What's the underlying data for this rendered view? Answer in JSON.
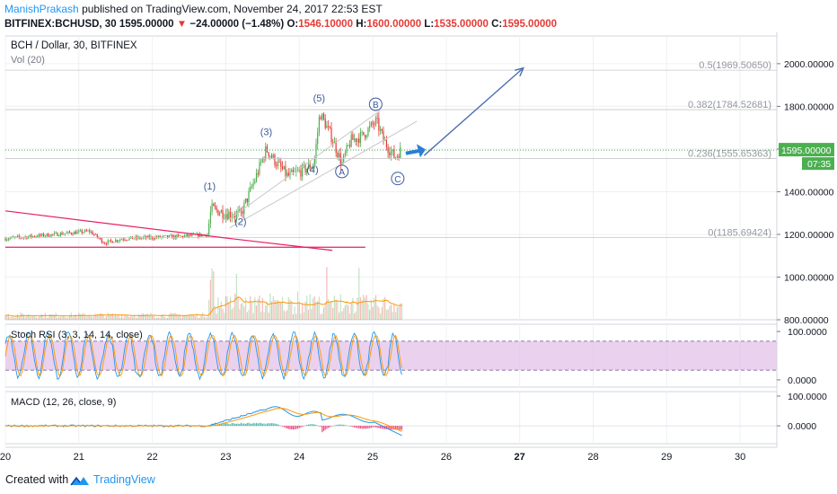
{
  "header": {
    "author": "ManishPrakash",
    "published_text": "published on TradingView.com, November 24, 2017 22:53 EST",
    "symbol_line": "BITFINEX:BCHUSD, 30",
    "last_price": "1595.00000",
    "change_arrow": "▼",
    "change_text": "−24.00000 (−1.48%)",
    "o_label": "O:",
    "o_value": "1546.10000",
    "h_label": "H:",
    "h_value": "1600.00000",
    "l_label": "L:",
    "l_value": "1535.00000",
    "c_label": "C:",
    "c_value": "1595.00000"
  },
  "footer": {
    "created_with": "Created with",
    "brand": "TradingView",
    "logo_icon": "tradingview-logo-icon"
  },
  "colors": {
    "up": "#4caf50",
    "down": "#e53935",
    "wedge": "#e91e63",
    "arrow": "#4a6fb3",
    "rsi_band": "#e1bee7",
    "macd_line": "#2196f3",
    "signal_line": "#ff9800",
    "last_price_bg": "#4caf50",
    "grid": "#eef0f3"
  },
  "chart_data": [
    {
      "type": "candlestick",
      "title": "BCH / Dollar, 30, BITFINEX",
      "y_ticks": [
        800,
        1000,
        1200,
        1400,
        1600,
        1800,
        2000
      ],
      "y_tick_labels": [
        "800.00000",
        "1000.00000",
        "1200.00000",
        "1400.00000",
        "1600.00000",
        "1800.00000",
        "2000.00000"
      ],
      "ylim": [
        800,
        2130
      ],
      "x_range": [
        20,
        30.5
      ],
      "x_ticks": [
        20,
        21,
        22,
        23,
        24,
        25,
        26,
        27,
        28,
        29,
        30
      ],
      "x_tick_labels": [
        "20",
        "21",
        "22",
        "23",
        "24",
        "25",
        "26",
        "27",
        "28",
        "29",
        "30"
      ],
      "bold_x_ticks": [
        27
      ],
      "last_price_label": "1595.00000",
      "countdown_label": "07:35",
      "fib_levels": [
        {
          "label": "0.5(1969.50650)",
          "price": 1969.5065
        },
        {
          "label": "0.382(1784.52681)",
          "price": 1784.52681
        },
        {
          "label": "0.236(1555.65363)",
          "price": 1555.65363
        },
        {
          "label": "0(1185.69424)",
          "price": 1185.69424
        }
      ],
      "wave_labels": [
        {
          "text": "(1)",
          "x": 22.78,
          "price": 1410,
          "circle": false
        },
        {
          "text": "(2)",
          "x": 23.2,
          "price": 1245,
          "circle": false
        },
        {
          "text": "(3)",
          "x": 23.55,
          "price": 1665,
          "circle": false
        },
        {
          "text": "(4)",
          "x": 24.18,
          "price": 1488,
          "circle": false
        },
        {
          "text": "(5)",
          "x": 24.27,
          "price": 1822,
          "circle": false
        },
        {
          "text": "A",
          "x": 24.58,
          "price": 1478,
          "circle": true
        },
        {
          "text": "B",
          "x": 25.04,
          "price": 1793,
          "circle": true
        },
        {
          "text": "C",
          "x": 25.34,
          "price": 1445,
          "circle": true
        }
      ],
      "key_points": [
        {
          "x": 20.0,
          "price": 1180
        },
        {
          "x": 20.5,
          "price": 1195
        },
        {
          "x": 21.15,
          "price": 1215
        },
        {
          "x": 21.35,
          "price": 1160
        },
        {
          "x": 21.6,
          "price": 1180
        },
        {
          "x": 22.0,
          "price": 1185
        },
        {
          "x": 22.4,
          "price": 1190
        },
        {
          "x": 22.75,
          "price": 1200
        },
        {
          "x": 22.8,
          "price": 1320
        },
        {
          "x": 23.0,
          "price": 1300
        },
        {
          "x": 23.2,
          "price": 1290
        },
        {
          "x": 23.4,
          "price": 1460
        },
        {
          "x": 23.55,
          "price": 1600
        },
        {
          "x": 23.7,
          "price": 1530
        },
        {
          "x": 23.85,
          "price": 1470
        },
        {
          "x": 24.1,
          "price": 1510
        },
        {
          "x": 24.2,
          "price": 1530
        },
        {
          "x": 24.28,
          "price": 1770
        },
        {
          "x": 24.45,
          "price": 1650
        },
        {
          "x": 24.58,
          "price": 1530
        },
        {
          "x": 24.7,
          "price": 1640
        },
        {
          "x": 24.85,
          "price": 1660
        },
        {
          "x": 25.05,
          "price": 1730
        },
        {
          "x": 25.15,
          "price": 1640
        },
        {
          "x": 25.3,
          "price": 1560
        },
        {
          "x": 25.38,
          "price": 1595
        }
      ],
      "wedge_upper": [
        {
          "x": 20.0,
          "price": 1310
        },
        {
          "x": 22.95,
          "price": 1185
        },
        {
          "x": 24.45,
          "price": 1125
        }
      ],
      "wedge_lower": [
        {
          "x": 20.0,
          "price": 1140
        },
        {
          "x": 24.9,
          "price": 1140
        }
      ],
      "channel_lines": [
        {
          "from": {
            "x": 23.0,
            "price": 1260
          },
          "to": {
            "x": 25.1,
            "price": 1780
          }
        },
        {
          "from": {
            "x": 23.05,
            "price": 1230
          },
          "to": {
            "x": 25.6,
            "price": 1730
          }
        }
      ],
      "projection_arrow": {
        "from": {
          "x": 25.7,
          "price": 1570
        },
        "to": {
          "x": 27.05,
          "price": 1980
        }
      },
      "small_arrow": {
        "from": {
          "x": 25.45,
          "price": 1580
        },
        "to": {
          "x": 25.72,
          "price": 1598
        }
      }
    },
    {
      "type": "bar",
      "title": "Vol (20)",
      "overlay_line": "volume moving average",
      "x_range": [
        20,
        25.4
      ]
    },
    {
      "type": "line",
      "title": "Stoch RSI (3, 3, 14, 14, close)",
      "y_ticks": [
        0,
        100
      ],
      "y_tick_labels": [
        "0.0000",
        "100.0000"
      ],
      "bands": [
        20,
        80
      ],
      "ylim": [
        -15,
        115
      ]
    },
    {
      "type": "line",
      "title": "MACD (12, 26, close, 9)",
      "y_ticks": [
        0,
        100
      ],
      "y_tick_labels": [
        "0.0000",
        "100.0000"
      ],
      "ylim": [
        -60,
        115
      ]
    }
  ]
}
